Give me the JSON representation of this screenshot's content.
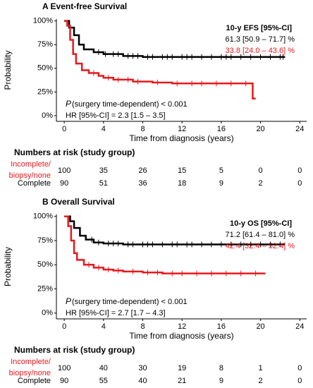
{
  "chart_data": [
    {
      "type": "kaplan-meier",
      "title": "A Event-free Survival",
      "xlabel": "Time from diagnosis (years)",
      "ylabel": "Probability",
      "xlim": [
        -0.8,
        24.7
      ],
      "ylim": [
        -6,
        102
      ],
      "xticks": [
        0,
        4,
        8,
        12,
        16,
        20,
        24
      ],
      "yticks": [
        {
          "value": 0,
          "label": "0%"
        },
        {
          "value": 25,
          "label": "25%"
        },
        {
          "value": 50,
          "label": "50%"
        },
        {
          "value": 75,
          "label": "75%"
        },
        {
          "value": 100,
          "label": "100%"
        }
      ],
      "estimate_header": "10-y EFS [95%-CI]",
      "p_symbol": "P",
      "p_text": "(surgery time-dependent) < 0.001",
      "hr": "HR [95%-CI] = 2.3 [1.5 – 3.5]",
      "series": [
        {
          "color": "#000000",
          "estimate_label": "61.3 [50.9 – 71.7] %",
          "x": [
            0,
            0.5,
            1,
            1.5,
            2,
            3,
            4,
            6,
            8,
            22.5
          ],
          "values": [
            100,
            93,
            85,
            75,
            70,
            67,
            65,
            63,
            62,
            62
          ],
          "censored": [
            3.5,
            4.2,
            5,
            5.5,
            6.5,
            7,
            7.5,
            8.5,
            9,
            10,
            10.5,
            11,
            12,
            12.5,
            13,
            14,
            15,
            16,
            16.5,
            17,
            18,
            19,
            20,
            21,
            22,
            22.3
          ]
        },
        {
          "color": "#e8191c",
          "estimate_label": "33.8 [24.0 – 43.6] %",
          "x": [
            0,
            0.3,
            0.6,
            0.9,
            1.2,
            1.8,
            2.5,
            3.5,
            4,
            5,
            7,
            9,
            11,
            19.2,
            19.5
          ],
          "values": [
            100,
            95,
            80,
            65,
            55,
            48,
            45,
            42,
            40,
            38,
            36,
            35,
            34,
            18,
            18
          ],
          "censored": [
            3,
            4.5,
            5.5,
            6.5,
            7.5,
            9.5,
            11.5,
            13,
            14,
            15.5,
            17,
            18.5
          ]
        }
      ],
      "risk_table": {
        "title": "Numbers at risk (study group)",
        "groups": [
          {
            "label": [
              "Incomplete/",
              "biopsy/none"
            ],
            "color": "#e8191c",
            "counts": [
              100,
              35,
              26,
              15,
              5,
              0,
              0
            ]
          },
          {
            "label": [
              "Complete"
            ],
            "color": "#000000",
            "counts": [
              90,
              51,
              36,
              18,
              9,
              2,
              0
            ]
          }
        ]
      }
    },
    {
      "type": "kaplan-meier",
      "title": "B Overall Survival",
      "xlabel": "Time from diagnosis (years)",
      "ylabel": "Probability",
      "xlim": [
        -0.8,
        24.7
      ],
      "ylim": [
        -6,
        102
      ],
      "xticks": [
        0,
        4,
        8,
        12,
        16,
        20,
        24
      ],
      "yticks": [
        {
          "value": 0,
          "label": "0%"
        },
        {
          "value": 25,
          "label": "25%"
        },
        {
          "value": 50,
          "label": "50%"
        },
        {
          "value": 75,
          "label": "75%"
        },
        {
          "value": 100,
          "label": "100%"
        }
      ],
      "estimate_header": "10-y OS [95%-CI]",
      "p_symbol": "P",
      "p_text": "(surgery time-dependent) < 0.001",
      "hr": "HR [95%-CI] = 2.7 [1.7 – 4.3]",
      "series": [
        {
          "color": "#000000",
          "estimate_label": "71.2 [61.4 – 81.0] %",
          "x": [
            0,
            0.6,
            1,
            1.6,
            2.2,
            3,
            4,
            6,
            22.5
          ],
          "values": [
            100,
            95,
            88,
            80,
            76,
            73,
            72,
            71,
            71
          ],
          "censored": [
            2.8,
            3.5,
            4.5,
            5,
            5.5,
            6.5,
            7,
            8,
            8.5,
            9,
            10,
            11,
            11.5,
            12.5,
            13,
            14,
            15,
            16,
            17,
            18,
            19,
            20,
            21,
            22
          ]
        },
        {
          "color": "#e8191c",
          "estimate_label": "42.4 [32.4 – 52.4] %",
          "x": [
            0,
            0.4,
            0.7,
            1,
            1.3,
            2,
            3,
            4,
            5,
            6,
            8,
            10,
            20.5
          ],
          "values": [
            100,
            90,
            75,
            62,
            55,
            50,
            47,
            45,
            44,
            43,
            42,
            41,
            41
          ],
          "censored": [
            2.5,
            3.5,
            4.5,
            5.5,
            7,
            8.5,
            9.5,
            11,
            12,
            13.5,
            15,
            16.5,
            18,
            19.5
          ]
        }
      ],
      "risk_table": {
        "title": "Numbers at risk (study group)",
        "groups": [
          {
            "label": [
              "Incomplete/",
              "biopsy/none"
            ],
            "color": "#e8191c",
            "counts": [
              100,
              40,
              30,
              19,
              8,
              1,
              0
            ]
          },
          {
            "label": [
              "Complete"
            ],
            "color": "#000000",
            "counts": [
              90,
              55,
              40,
              21,
              9,
              2,
              0
            ]
          }
        ]
      }
    }
  ]
}
